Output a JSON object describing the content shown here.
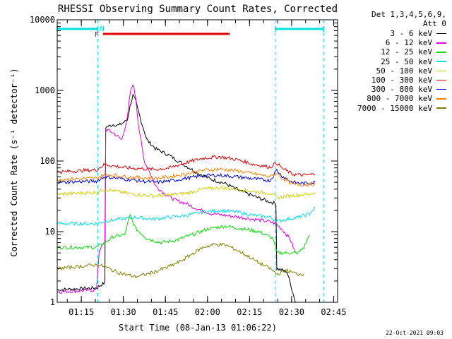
{
  "chart_data": {
    "type": "line",
    "title": "RHESSI Observing Summary Count Rates, Corrected",
    "xlabel": "Start Time (08-Jan-13 01:06:22)",
    "ylabel": "Corrected Count Rate (s⁻¹ detector⁻¹)",
    "yscale": "log",
    "ylim": [
      1,
      10000
    ],
    "xlim_minutes": [
      0,
      100
    ],
    "yticks": [
      {
        "value": 1,
        "label": "1"
      },
      {
        "value": 10,
        "label": "10"
      },
      {
        "value": 100,
        "label": "100"
      },
      {
        "value": 1000,
        "label": "1000"
      },
      {
        "value": 10000,
        "label": "10000"
      }
    ],
    "xticks": [
      {
        "minute": 8.6,
        "label": "01:15"
      },
      {
        "minute": 23.6,
        "label": "01:30"
      },
      {
        "minute": 38.6,
        "label": "01:45"
      },
      {
        "minute": 53.6,
        "label": "02:00"
      },
      {
        "minute": 68.6,
        "label": "02:15"
      },
      {
        "minute": 83.6,
        "label": "02:30"
      },
      {
        "minute": 98.6,
        "label": "02:45"
      }
    ],
    "legend_header": [
      "Det 1,3,4,5,6,9,",
      "Att 0"
    ],
    "series": [
      {
        "name": "3 - 6 keV",
        "color": "#000000",
        "points": [
          [
            0,
            1.5
          ],
          [
            14,
            1.6
          ],
          [
            17,
            1.9
          ],
          [
            17.3,
            300
          ],
          [
            20,
            330
          ],
          [
            22,
            320
          ],
          [
            25,
            380
          ],
          [
            26,
            600
          ],
          [
            27,
            850
          ],
          [
            28,
            700
          ],
          [
            30,
            360
          ],
          [
            32,
            200
          ],
          [
            35,
            150
          ],
          [
            40,
            120
          ],
          [
            45,
            90
          ],
          [
            50,
            68
          ],
          [
            55,
            55
          ],
          [
            60,
            48
          ],
          [
            65,
            38
          ],
          [
            70,
            32
          ],
          [
            75,
            27
          ],
          [
            78,
            25
          ],
          [
            78.3,
            3
          ],
          [
            82,
            2.7
          ],
          [
            85,
            1
          ]
        ]
      },
      {
        "name": "6 - 12 keV",
        "color": "#e000e0",
        "points": [
          [
            0,
            1.4
          ],
          [
            14,
            1.5
          ],
          [
            15,
            5.5
          ],
          [
            17,
            7
          ],
          [
            17.3,
            280
          ],
          [
            20,
            250
          ],
          [
            23,
            200
          ],
          [
            25,
            400
          ],
          [
            26,
            900
          ],
          [
            27,
            1250
          ],
          [
            28,
            800
          ],
          [
            29,
            320
          ],
          [
            31,
            100
          ],
          [
            33,
            70
          ],
          [
            35,
            45
          ],
          [
            38,
            35
          ],
          [
            42,
            28
          ],
          [
            46,
            25
          ],
          [
            50,
            21
          ],
          [
            55,
            18
          ],
          [
            60,
            17
          ],
          [
            65,
            16
          ],
          [
            70,
            15
          ],
          [
            75,
            14
          ],
          [
            78,
            13
          ],
          [
            80,
            11
          ],
          [
            83,
            8
          ],
          [
            85,
            5
          ]
        ]
      },
      {
        "name": "12 - 25 keV",
        "color": "#00e000",
        "points": [
          [
            0,
            6
          ],
          [
            14,
            6
          ],
          [
            17,
            7
          ],
          [
            20,
            8.5
          ],
          [
            24,
            9
          ],
          [
            26,
            17
          ],
          [
            28,
            11
          ],
          [
            32,
            8
          ],
          [
            37,
            7
          ],
          [
            42,
            7.5
          ],
          [
            48,
            9
          ],
          [
            54,
            11
          ],
          [
            60,
            12
          ],
          [
            66,
            11
          ],
          [
            72,
            10
          ],
          [
            77,
            8
          ],
          [
            78.3,
            5
          ],
          [
            82,
            5
          ],
          [
            86,
            5
          ],
          [
            88,
            6
          ],
          [
            90,
            9
          ]
        ]
      },
      {
        "name": "25 - 50 keV",
        "color": "#00e0e0",
        "points": [
          [
            0,
            13
          ],
          [
            14,
            13
          ],
          [
            17,
            14
          ],
          [
            22,
            15
          ],
          [
            28,
            16
          ],
          [
            34,
            15
          ],
          [
            40,
            16
          ],
          [
            46,
            17
          ],
          [
            52,
            19
          ],
          [
            58,
            20
          ],
          [
            64,
            19
          ],
          [
            70,
            17
          ],
          [
            76,
            16
          ],
          [
            78.3,
            14
          ],
          [
            82,
            15
          ],
          [
            86,
            16
          ],
          [
            90,
            18
          ],
          [
            92,
            22
          ]
        ]
      },
      {
        "name": "50 - 100 keV",
        "color": "#d0d000",
        "points": [
          [
            0,
            34
          ],
          [
            14,
            36
          ],
          [
            17,
            40
          ],
          [
            20,
            38
          ],
          [
            25,
            35
          ],
          [
            30,
            33
          ],
          [
            35,
            32
          ],
          [
            40,
            33
          ],
          [
            46,
            35
          ],
          [
            52,
            40
          ],
          [
            58,
            42
          ],
          [
            64,
            40
          ],
          [
            70,
            37
          ],
          [
            76,
            35
          ],
          [
            78.3,
            30
          ],
          [
            82,
            32
          ],
          [
            86,
            33
          ],
          [
            90,
            34
          ],
          [
            92,
            36
          ]
        ]
      },
      {
        "name": "100 - 300 keV",
        "color": "#e00000",
        "points": [
          [
            0,
            70
          ],
          [
            14,
            75
          ],
          [
            17,
            90
          ],
          [
            20,
            85
          ],
          [
            25,
            80
          ],
          [
            30,
            78
          ],
          [
            35,
            76
          ],
          [
            40,
            80
          ],
          [
            46,
            95
          ],
          [
            52,
            110
          ],
          [
            58,
            115
          ],
          [
            64,
            105
          ],
          [
            70,
            90
          ],
          [
            76,
            82
          ],
          [
            78.3,
            95
          ],
          [
            80,
            80
          ],
          [
            84,
            65
          ],
          [
            88,
            63
          ],
          [
            92,
            65
          ]
        ]
      },
      {
        "name": "300 - 800 keV",
        "color": "#0000e0",
        "points": [
          [
            0,
            50
          ],
          [
            14,
            52
          ],
          [
            17,
            60
          ],
          [
            20,
            58
          ],
          [
            25,
            55
          ],
          [
            30,
            52
          ],
          [
            35,
            50
          ],
          [
            40,
            52
          ],
          [
            46,
            57
          ],
          [
            52,
            62
          ],
          [
            58,
            63
          ],
          [
            64,
            60
          ],
          [
            70,
            56
          ],
          [
            76,
            53
          ],
          [
            78.3,
            75
          ],
          [
            80,
            62
          ],
          [
            84,
            50
          ],
          [
            88,
            48
          ],
          [
            92,
            50
          ]
        ]
      },
      {
        "name": "800 - 7000 keV",
        "color": "#ff8000",
        "points": [
          [
            0,
            55
          ],
          [
            14,
            57
          ],
          [
            17,
            65
          ],
          [
            20,
            63
          ],
          [
            25,
            60
          ],
          [
            30,
            58
          ],
          [
            35,
            57
          ],
          [
            40,
            60
          ],
          [
            46,
            66
          ],
          [
            52,
            74
          ],
          [
            58,
            77
          ],
          [
            64,
            73
          ],
          [
            70,
            66
          ],
          [
            76,
            60
          ],
          [
            78.3,
            68
          ],
          [
            80,
            58
          ],
          [
            84,
            47
          ],
          [
            88,
            46
          ],
          [
            92,
            47
          ]
        ]
      },
      {
        "name": "7000 - 15000 keV",
        "color": "#808000",
        "points": [
          [
            0,
            3
          ],
          [
            14,
            3.4
          ],
          [
            17,
            3.2
          ],
          [
            20,
            2.8
          ],
          [
            24,
            2.5
          ],
          [
            28,
            2.3
          ],
          [
            32,
            2.5
          ],
          [
            36,
            2.8
          ],
          [
            40,
            3.2
          ],
          [
            44,
            3.8
          ],
          [
            48,
            4.8
          ],
          [
            52,
            6
          ],
          [
            56,
            6.6
          ],
          [
            60,
            6.5
          ],
          [
            64,
            5.5
          ],
          [
            68,
            4.5
          ],
          [
            72,
            3.6
          ],
          [
            76,
            3
          ],
          [
            78.3,
            2.5
          ],
          [
            82,
            2.8
          ],
          [
            86,
            2.5
          ],
          [
            88,
            2.5
          ]
        ]
      }
    ],
    "markers": {
      "night_label": "N",
      "flare_label": "F",
      "night_intervals_minutes": [
        [
          0,
          14.5
        ],
        [
          77.8,
          95
        ]
      ],
      "flare_interval_minutes": [
        16.3,
        61.5
      ],
      "night_color": "#00e0e0",
      "flare_color": "#e00000"
    },
    "vlines_minutes": [
      14.5,
      77.8,
      95
    ]
  },
  "timestamp": "22-Oct-2021 09:03"
}
